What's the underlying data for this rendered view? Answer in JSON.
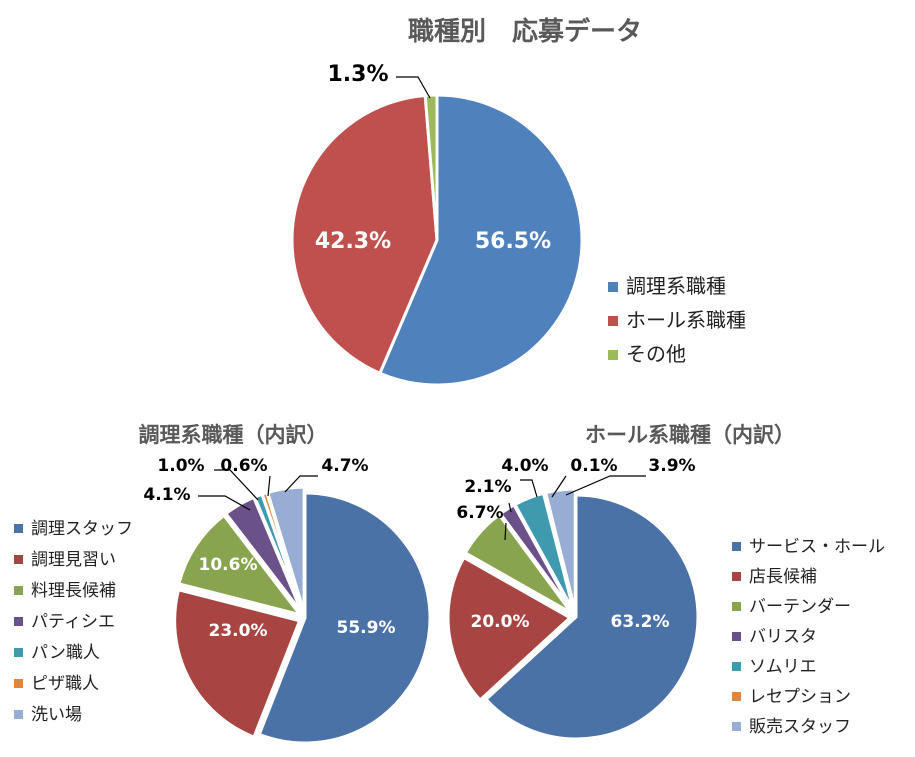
{
  "chart_data": [
    {
      "type": "pie",
      "title": "職種別　応募データ",
      "categories": [
        "調理系職種",
        "ホール系職種",
        "その他"
      ],
      "values": [
        56.5,
        42.3,
        1.3
      ],
      "labels": [
        "56.5%",
        "42.3%",
        "1.3%"
      ],
      "colors": [
        "#4F81BD",
        "#C0504D",
        "#9BBB59"
      ],
      "legend": "right"
    },
    {
      "type": "pie",
      "title": "調理系職種（内訳）",
      "categories": [
        "調理スタッフ",
        "調理見習い",
        "料理長候補",
        "パティシエ",
        "パン職人",
        "ピザ職人",
        "洗い場"
      ],
      "values": [
        55.9,
        23.0,
        10.6,
        4.1,
        1.0,
        0.6,
        4.7
      ],
      "labels": [
        "55.9%",
        "23.0%",
        "10.6%",
        "4.1%",
        "1.0%",
        "0.6%",
        "4.7%"
      ],
      "colors": [
        "#4A72A6",
        "#A84542",
        "#88A44E",
        "#6B5189",
        "#3F9AB0",
        "#E0853A",
        "#97ADD3"
      ],
      "legend": "left"
    },
    {
      "type": "pie",
      "title": "ホール系職種（内訳）",
      "categories": [
        "サービス・ホール",
        "店長候補",
        "バーテンダー",
        "バリスタ",
        "ソムリエ",
        "レセプション",
        "販売スタッフ"
      ],
      "values": [
        63.2,
        20.0,
        6.7,
        2.1,
        4.0,
        0.1,
        3.9
      ],
      "labels": [
        "63.2%",
        "20.0%",
        "6.7%",
        "2.1%",
        "4.0%",
        "0.1%",
        "3.9%"
      ],
      "colors": [
        "#4A72A6",
        "#A84542",
        "#88A44E",
        "#6B5189",
        "#3F9AB0",
        "#E0853A",
        "#97ADD3"
      ],
      "legend": "right"
    }
  ]
}
